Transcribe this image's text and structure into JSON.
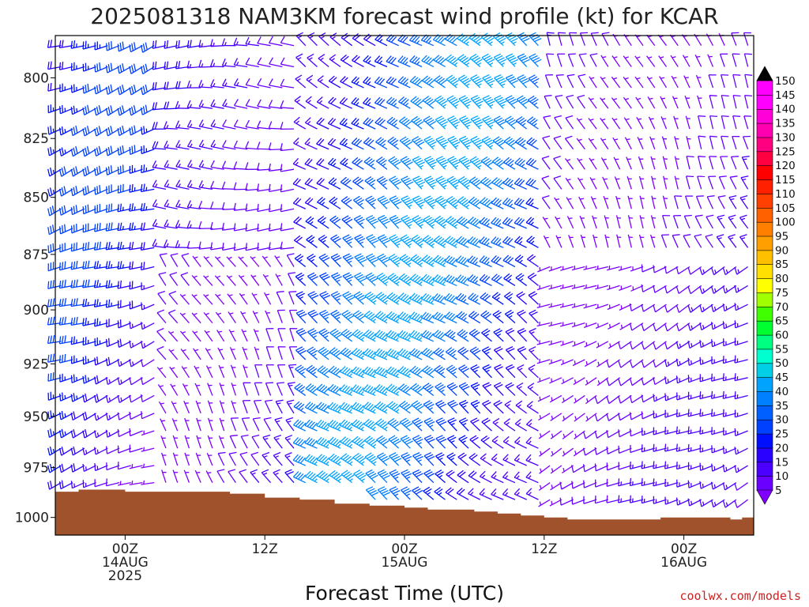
{
  "chart_data": {
    "type": "wind-barb time-height cross section",
    "title": "2025081318 NAM3KM forecast wind profile (kt) for KCAR",
    "xlabel": "Forecast Time (UTC)",
    "ylabel": "",
    "x_ticks": [
      {
        "lines": [
          "00Z",
          "14AUG",
          "2025"
        ]
      },
      {
        "lines": [
          "12Z"
        ]
      },
      {
        "lines": [
          "00Z",
          "15AUG"
        ]
      },
      {
        "lines": [
          "12Z"
        ]
      },
      {
        "lines": [
          "00Z",
          "16AUG"
        ]
      }
    ],
    "x_range_hours_from_start": [
      0,
      60
    ],
    "x_tick_hours": [
      6,
      18,
      30,
      42,
      54
    ],
    "y_ticks": [
      800,
      825,
      850,
      875,
      900,
      925,
      950,
      975,
      1000
    ],
    "y_range_hpa": [
      1009,
      783
    ],
    "colorbar": {
      "units": "kt",
      "levels": [
        5,
        10,
        15,
        20,
        25,
        30,
        35,
        40,
        45,
        50,
        55,
        60,
        65,
        70,
        75,
        80,
        85,
        90,
        95,
        100,
        105,
        110,
        115,
        120,
        125,
        130,
        135,
        140,
        145,
        150
      ],
      "colors": [
        "#7f00ff",
        "#6a00ff",
        "#4b00ff",
        "#2a00ff",
        "#0010ff",
        "#0040ff",
        "#0060ff",
        "#0080ff",
        "#00a4ff",
        "#00cfe6",
        "#00ffd0",
        "#00ff80",
        "#00ff30",
        "#40ff00",
        "#a0ff00",
        "#ffff00",
        "#ffe000",
        "#ffc000",
        "#ffa000",
        "#ff8000",
        "#ff6000",
        "#ff4000",
        "#ff2000",
        "#ff0000",
        "#ff0040",
        "#ff0080",
        "#ff00b0",
        "#ff00d8",
        "#ff00ff",
        "#ff00ff"
      ]
    },
    "terrain_fill_color": "#a0522d",
    "surface_pressure_hpa": [
      [
        0,
        987
      ],
      [
        2,
        986
      ],
      [
        4,
        986
      ],
      [
        6,
        987
      ],
      [
        9,
        987
      ],
      [
        13,
        987
      ],
      [
        15,
        988
      ],
      [
        18,
        990
      ],
      [
        21,
        991
      ],
      [
        24,
        993
      ],
      [
        27,
        994
      ],
      [
        30,
        995
      ],
      [
        32,
        996
      ],
      [
        36,
        997
      ],
      [
        38,
        998
      ],
      [
        40,
        999
      ],
      [
        42,
        1000
      ],
      [
        44,
        1001
      ],
      [
        50,
        1001
      ],
      [
        52,
        1000
      ],
      [
        56,
        1000
      ],
      [
        58,
        1001
      ],
      [
        59,
        1000
      ],
      [
        60,
        1000
      ]
    ],
    "wind_regimes": [
      {
        "hours": [
          0,
          9
        ],
        "levels": "all",
        "direction_deg": 250,
        "speed_kt": [
          5,
          30
        ]
      },
      {
        "hours": [
          9,
          21
        ],
        "levels": "upper",
        "direction_deg": 270,
        "speed_kt": [
          10,
          20
        ]
      },
      {
        "hours": [
          9,
          21
        ],
        "levels": "lower",
        "direction_deg": 330,
        "speed_kt": [
          5,
          20
        ]
      },
      {
        "hours": [
          21,
          42
        ],
        "levels": "all",
        "direction_deg": 305,
        "speed_kt": [
          15,
          45
        ]
      },
      {
        "hours": [
          42,
          60
        ],
        "levels": "upper",
        "direction_deg": 335,
        "speed_kt": [
          5,
          15
        ]
      },
      {
        "hours": [
          42,
          60
        ],
        "levels": "lower",
        "direction_deg": 245,
        "speed_kt": [
          5,
          15
        ]
      }
    ],
    "credit": "coolwx.com/models"
  }
}
